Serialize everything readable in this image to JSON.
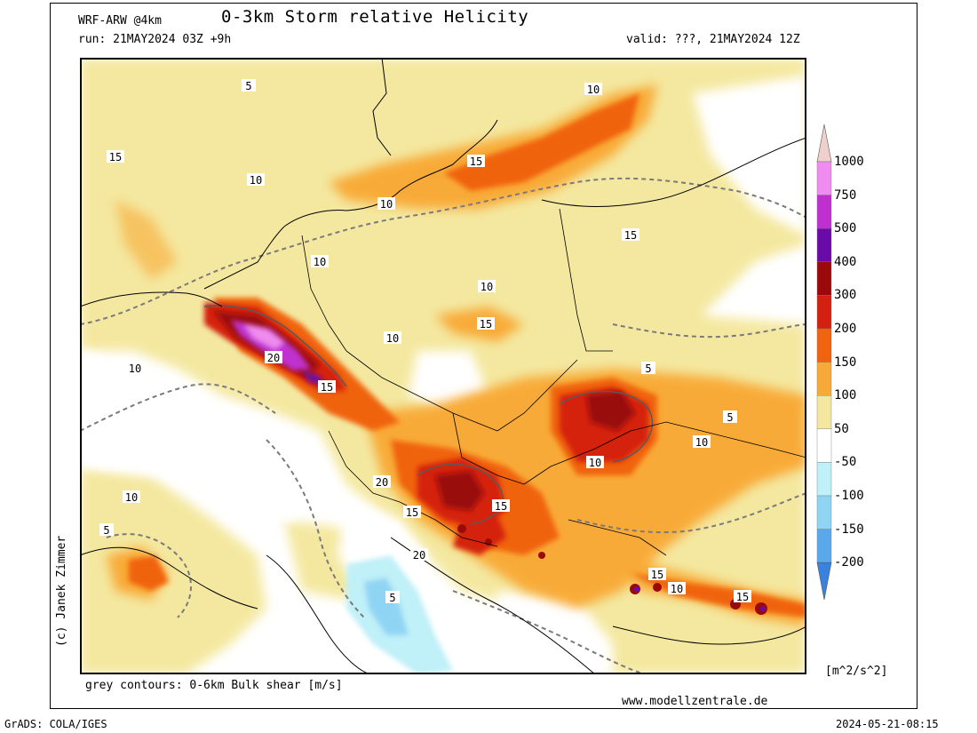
{
  "header": {
    "model": "WRF-ARW @4km",
    "title": "0-3km Storm relative Helicity",
    "run": "run: 21MAY2024 03Z +9h",
    "valid": "valid: ???, 21MAY2024 12Z"
  },
  "footer": {
    "contours_note": "grey contours: 0-6km Bulk shear [m/s]",
    "website": "www.modellzentrale.de",
    "grads": "GrADS: COLA/IGES",
    "timestamp": "2024-05-21-08:15",
    "credit": "(c) Janek Zimmer"
  },
  "colorbar": {
    "unit": "[m^2/s^2]",
    "labels": [
      "1000",
      "750",
      "500",
      "400",
      "300",
      "200",
      "150",
      "100",
      "50",
      "-50",
      "-100",
      "-150",
      "-200"
    ],
    "colors": [
      "#f0d0cc",
      "#f08cf0",
      "#c030d0",
      "#6a0aa8",
      "#9a0a0a",
      "#d42010",
      "#f06410",
      "#f8aa38",
      "#f4e8a0",
      "#ffffff",
      "#c0f0f8",
      "#90d4f4",
      "#5aa8ec",
      "#3a82e0"
    ]
  },
  "map": {
    "contour_labels": [
      {
        "text": "5"
      },
      {
        "text": "10"
      },
      {
        "text": "15"
      },
      {
        "text": "20"
      }
    ]
  }
}
